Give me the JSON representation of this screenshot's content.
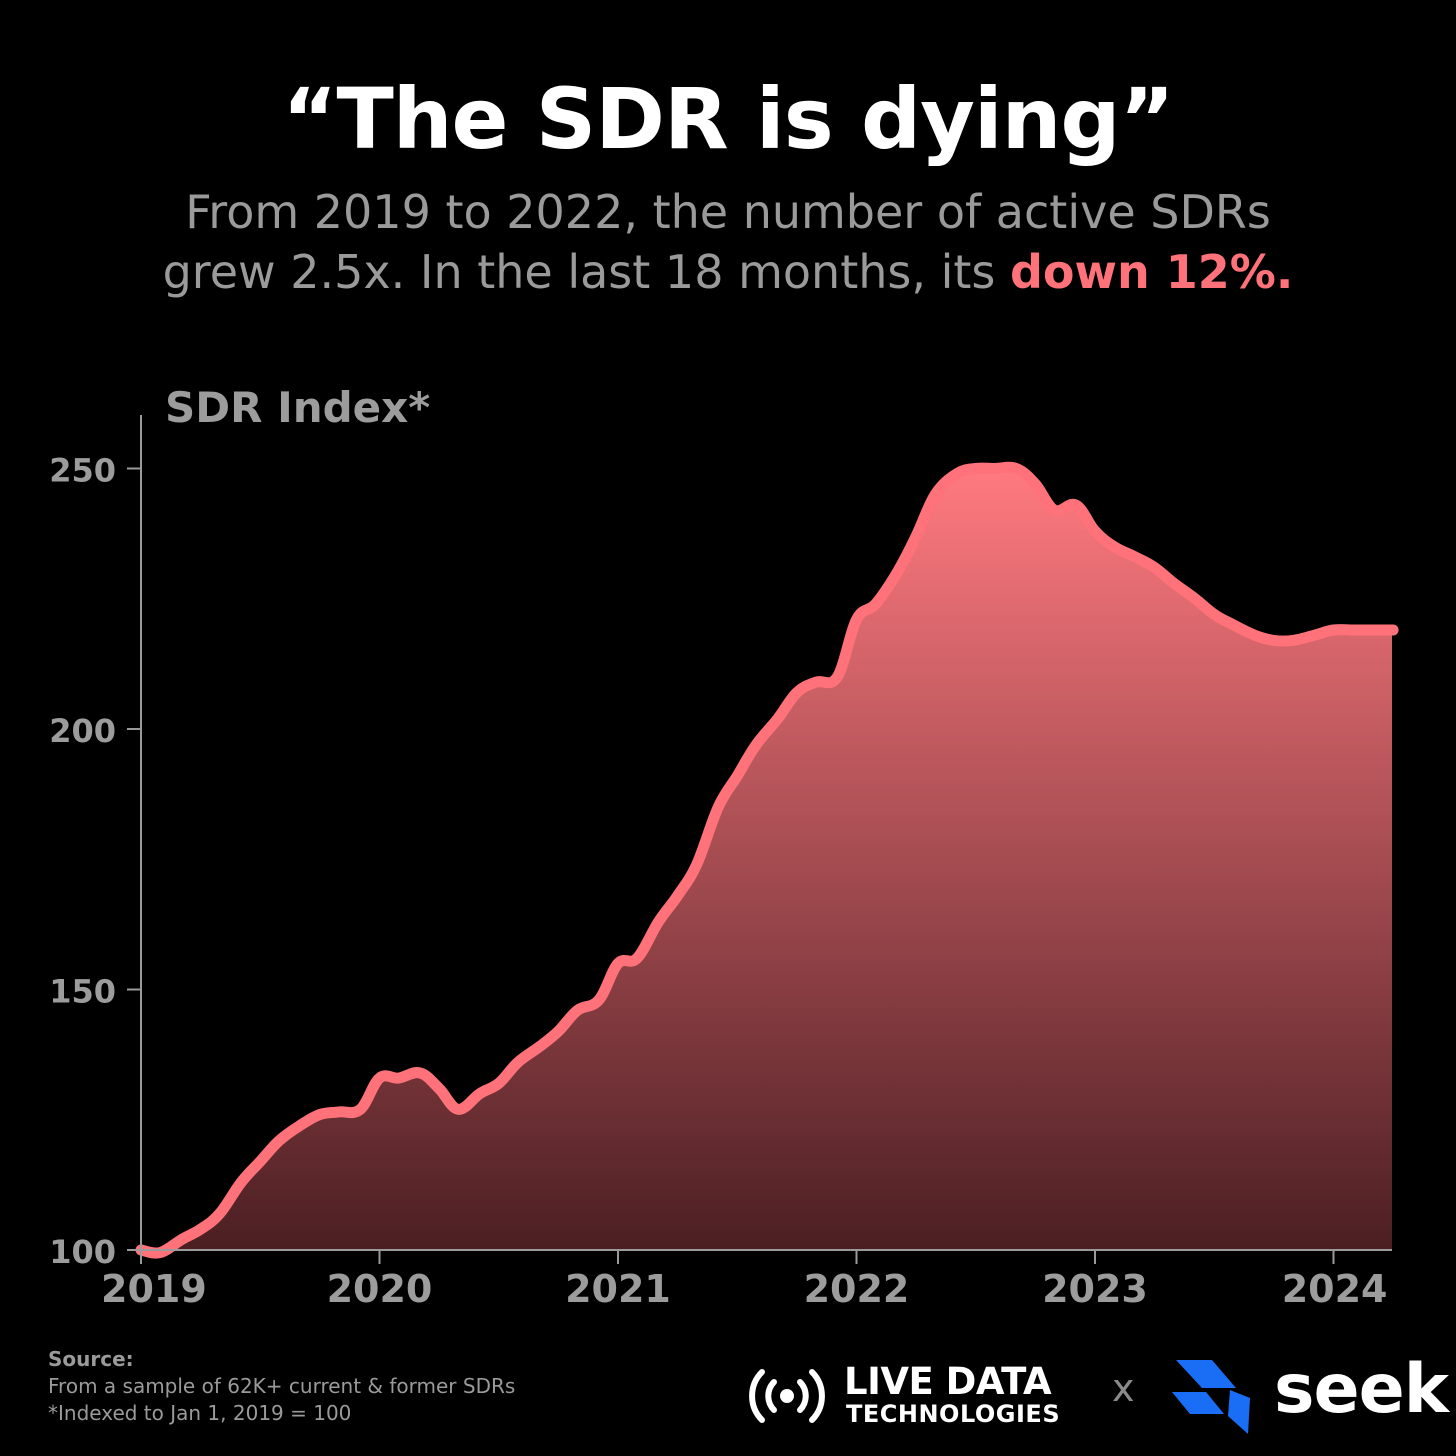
{
  "header": {
    "title": "“The SDR is dying”",
    "subtitle_line1": "From 2019 to 2022, the number of active SDRs",
    "subtitle_line2_prefix": "grew 2.5x. In the last 18 months, its ",
    "subtitle_line2_highlight": "down 12%."
  },
  "colors": {
    "accent": "#ff7279",
    "background": "#000000",
    "muted_text": "#9a9a9a",
    "seek_blue": "#1a6ef5"
  },
  "chart_data": {
    "type": "area",
    "ylabel": "SDR Index*",
    "xlabel": "",
    "ylim": [
      100,
      260
    ],
    "yticks": [
      100,
      150,
      200,
      250
    ],
    "xlim": [
      2019.0,
      2024.3
    ],
    "xticks": [
      2019,
      2020,
      2021,
      2022,
      2023,
      2024
    ],
    "grid": false,
    "legend": "none",
    "series": [
      {
        "x": [
          2019.0,
          2019.08,
          2019.17,
          2019.25,
          2019.33,
          2019.42,
          2019.5,
          2019.58,
          2019.67,
          2019.75,
          2019.83,
          2019.92,
          2020.0,
          2020.08,
          2020.17,
          2020.25,
          2020.33,
          2020.42,
          2020.5,
          2020.58,
          2020.67,
          2020.75,
          2020.83,
          2020.92,
          2021.0,
          2021.08,
          2021.17,
          2021.25,
          2021.33,
          2021.42,
          2021.5,
          2021.58,
          2021.67,
          2021.75,
          2021.83,
          2021.92,
          2022.0,
          2022.08,
          2022.17,
          2022.25,
          2022.33,
          2022.42,
          2022.5,
          2022.58,
          2022.67,
          2022.75,
          2022.83,
          2022.92,
          2023.0,
          2023.08,
          2023.17,
          2023.25,
          2023.33,
          2023.42,
          2023.5,
          2023.58,
          2023.67,
          2023.75,
          2023.83,
          2023.92,
          2024.0,
          2024.08,
          2024.17,
          2024.25
        ],
        "values": [
          100,
          99.5,
          102,
          104,
          107,
          113,
          117,
          121,
          124,
          126,
          126.5,
          127,
          133,
          133,
          134,
          131,
          127,
          130,
          132,
          136,
          139,
          142,
          146,
          148,
          155,
          156,
          163,
          168,
          174,
          185,
          191,
          197,
          202,
          207,
          209,
          210,
          221,
          224,
          230,
          237,
          245,
          249,
          250,
          250,
          250,
          247,
          242,
          243,
          238,
          235,
          233,
          231,
          228,
          225,
          222,
          220,
          218,
          217,
          217,
          218,
          219,
          219,
          219,
          219
        ]
      }
    ]
  },
  "footer": {
    "source_label": "Source:",
    "source_line1": "From a sample of 62K+ current & former SDRs",
    "source_line2": "*Indexed to Jan 1, 2019 = 100"
  },
  "logos": {
    "ldt_name": "LIVE DATA",
    "ldt_sub": "TECHNOLOGIES",
    "separator": "x",
    "seek_name": "seek"
  }
}
